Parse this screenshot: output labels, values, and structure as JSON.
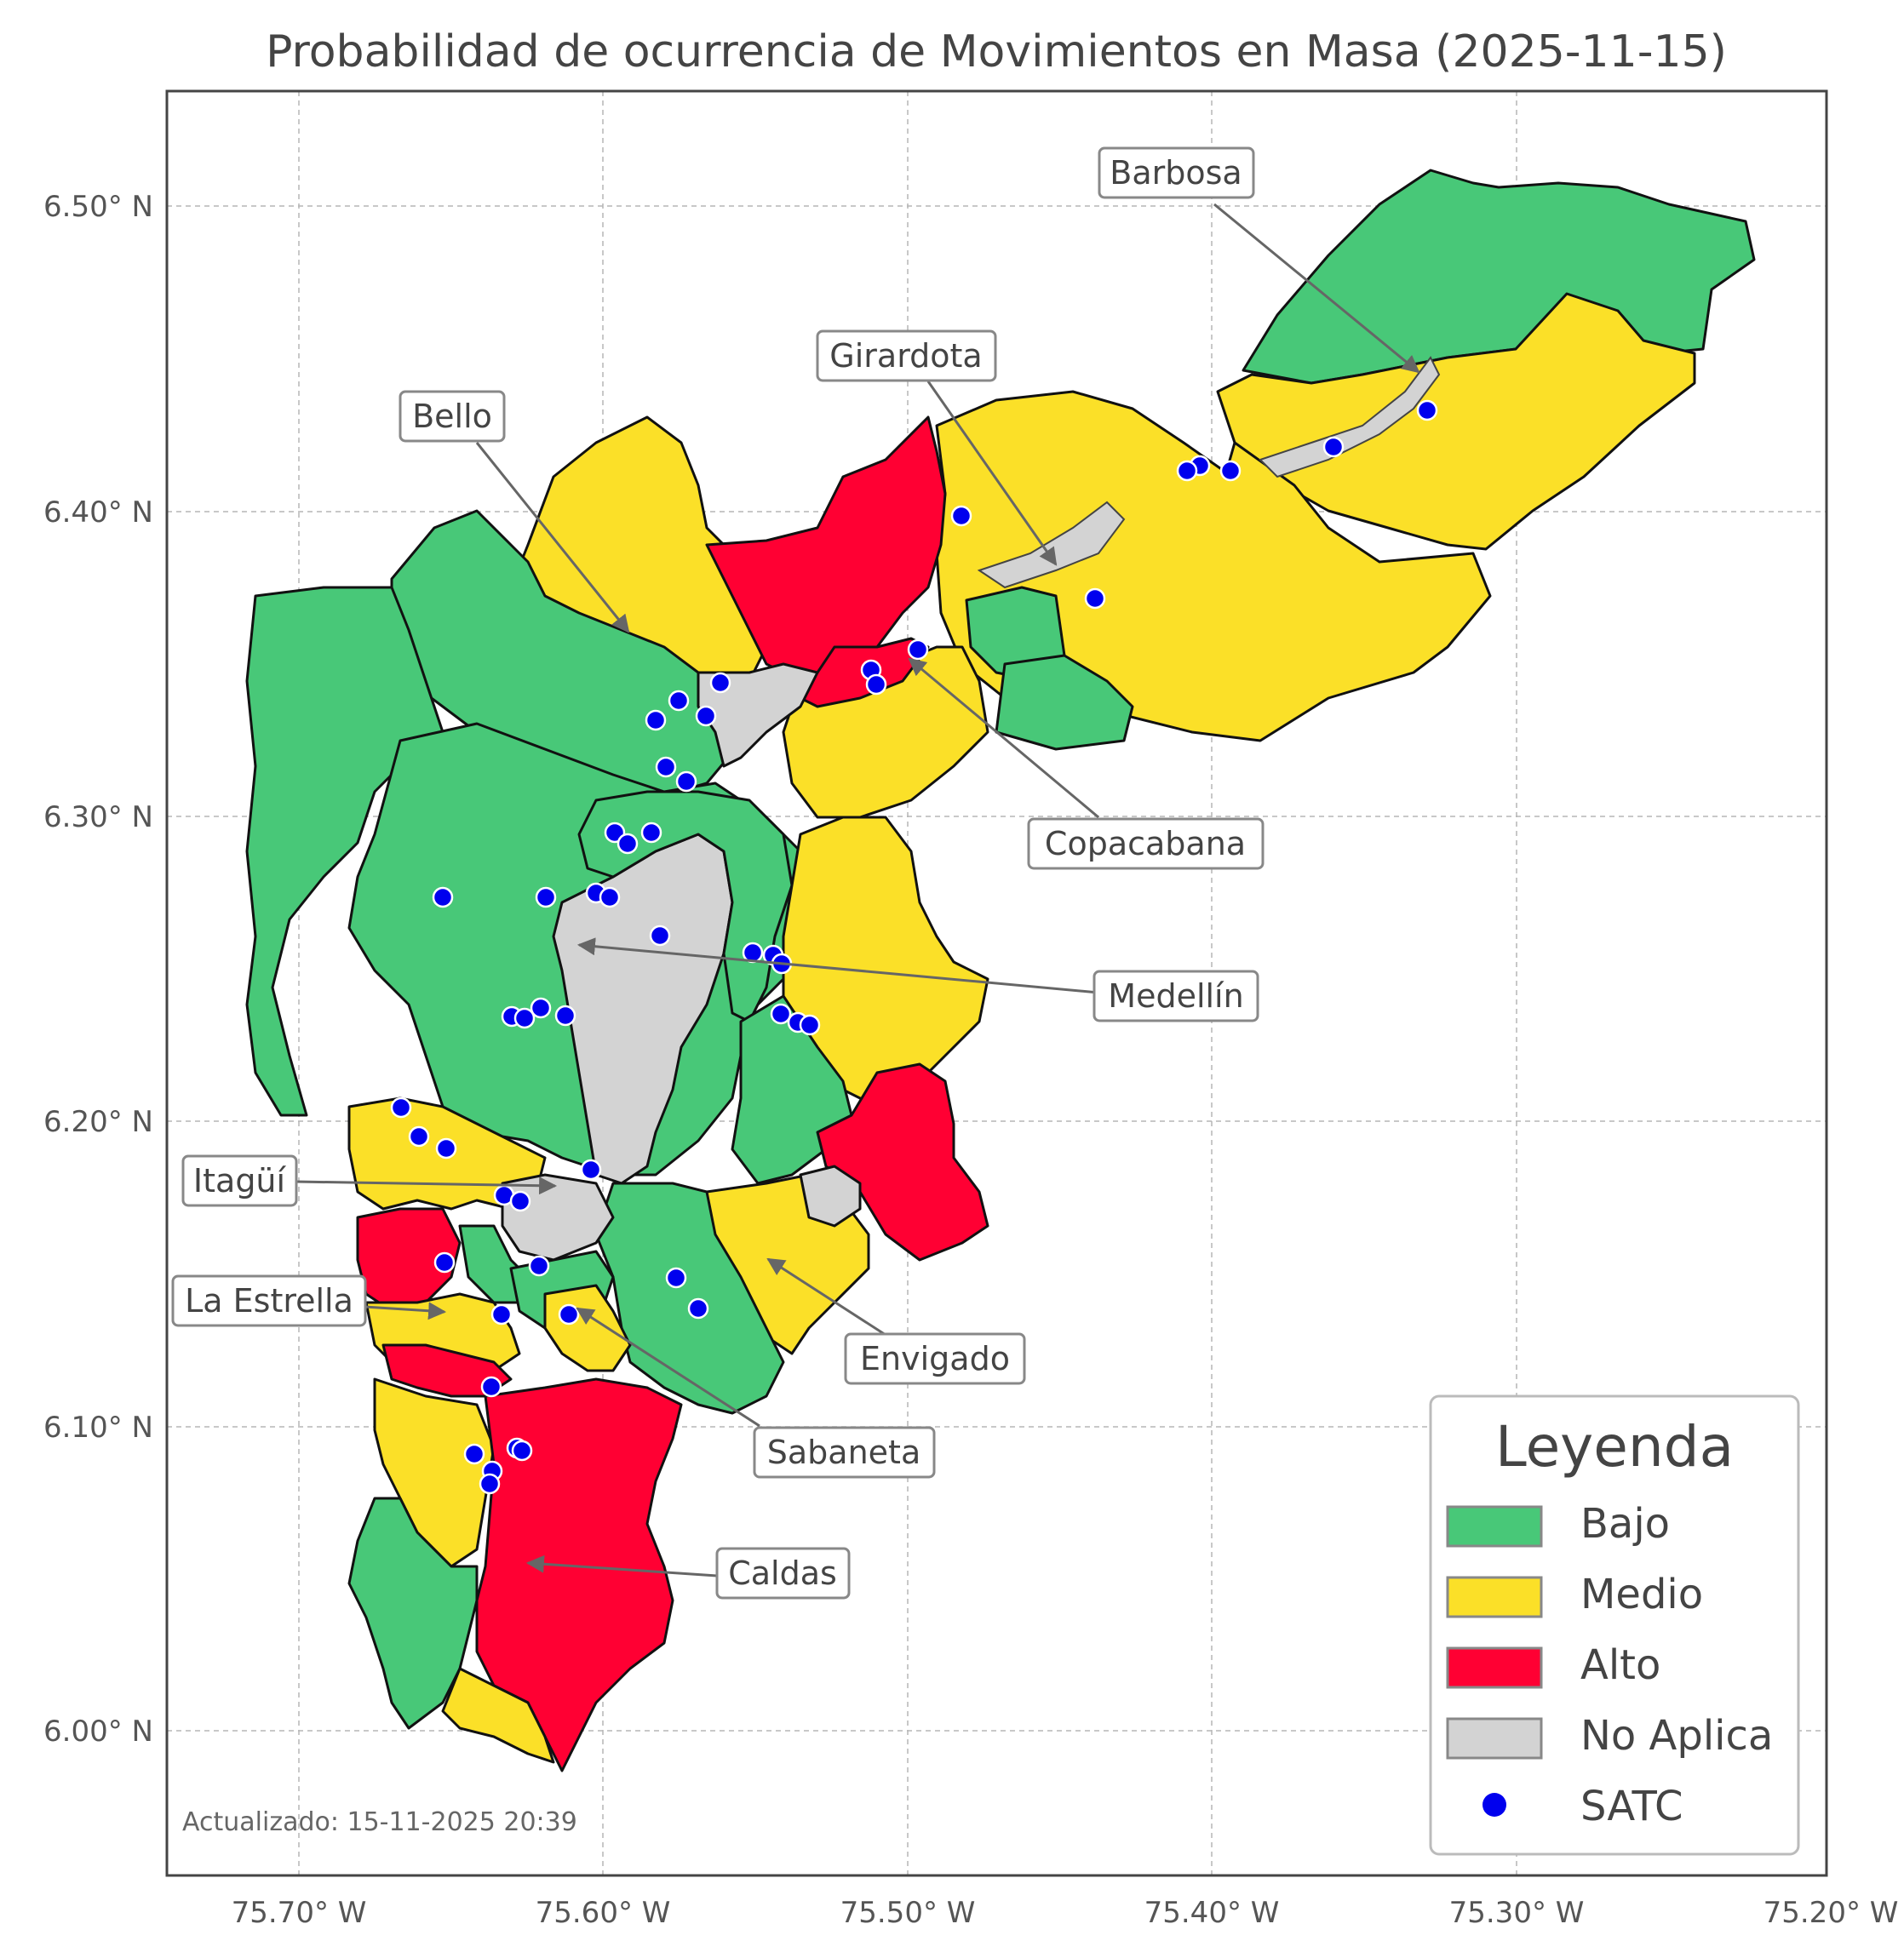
{
  "title": "Probabilidad de ocurrencia de Movimientos en Masa (2025-11-15)",
  "axes": {
    "x_ticks": [
      "75.70° W",
      "75.60° W",
      "75.50° W",
      "75.40° W",
      "75.30° W",
      "75.20° W"
    ],
    "y_ticks": [
      "6.50° N",
      "6.40° N",
      "6.30° N",
      "6.20° N",
      "6.10° N",
      "6.00° N"
    ],
    "lon_range": [
      -75.744,
      -75.197
    ],
    "lat_range": [
      5.955,
      6.54
    ],
    "grid": "on (dashed)"
  },
  "colors": {
    "bajo": "#48c878",
    "medio": "#fbe028",
    "alto": "#ff0033",
    "no_aplica": "#d3d3d3",
    "satc": "#0000ee"
  },
  "legend": {
    "title": "Leyenda",
    "placement": "bottom-right",
    "items": [
      {
        "label": "Bajo",
        "color": "#48c878",
        "kind": "patch"
      },
      {
        "label": "Medio",
        "color": "#fbe028",
        "kind": "patch"
      },
      {
        "label": "Alto",
        "color": "#ff0033",
        "kind": "patch"
      },
      {
        "label": "No Aplica",
        "color": "#d3d3d3",
        "kind": "patch"
      },
      {
        "label": "SATC",
        "color": "#0000ee",
        "kind": "marker"
      }
    ]
  },
  "municipalities": [
    {
      "name": "Barbosa",
      "level": "Medio / Bajo"
    },
    {
      "name": "Girardota",
      "level": "Medio"
    },
    {
      "name": "Bello",
      "level": "Bajo / Medio / Alto"
    },
    {
      "name": "Copacabana",
      "level": "Medio / Alto"
    },
    {
      "name": "Medellín",
      "level": "Bajo / No Aplica"
    },
    {
      "name": "Itagüí",
      "level": "Medio / No Aplica"
    },
    {
      "name": "La Estrella",
      "level": "Alto / Medio"
    },
    {
      "name": "Envigado",
      "level": "Medio / Alto / Bajo"
    },
    {
      "name": "Sabaneta",
      "level": "Medio / Bajo"
    },
    {
      "name": "Caldas",
      "level": "Alto / Medio / Bajo"
    }
  ],
  "updated_text": "Actualizado: 15-11-2025 20:39"
}
